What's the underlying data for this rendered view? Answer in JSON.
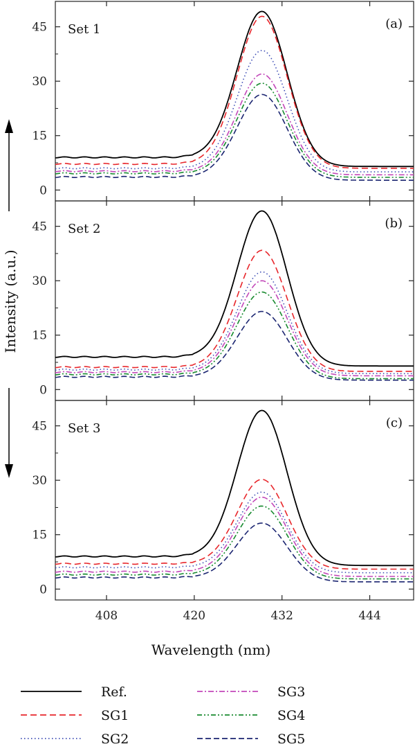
{
  "chart_data": {
    "type": "line",
    "xlabel": "Wavelength (nm)",
    "ylabel": "Intensity (a.u.)",
    "xlim": [
      401,
      450
    ],
    "ylim": [
      -3,
      52
    ],
    "xticks": [
      408,
      420,
      432,
      444
    ],
    "yticks": [
      0,
      15,
      30,
      45
    ],
    "legend_position": "bottom",
    "series_styles": [
      {
        "name": "Ref.",
        "color": "#000000",
        "dash": ""
      },
      {
        "name": "SG1",
        "color": "#e8262b",
        "dash": "9,5"
      },
      {
        "name": "SG2",
        "color": "#3d4db5",
        "dash": "1.5,3.5"
      },
      {
        "name": "SG3",
        "color": "#c248b9",
        "dash": "8,3,2,3"
      },
      {
        "name": "SG4",
        "color": "#178a2e",
        "dash": "7,3,2,3,2,3"
      },
      {
        "name": "SG5",
        "color": "#1a2470",
        "dash": "8,4"
      }
    ],
    "panels": [
      {
        "title": "Set 1",
        "letter": "(a)",
        "series": [
          {
            "name": "Ref.",
            "baseline_left": 9.0,
            "peak": 50.5,
            "baseline_right": 6.5
          },
          {
            "name": "SG1",
            "baseline_left": 7.2,
            "peak": 48.5,
            "baseline_right": 6.0
          },
          {
            "name": "SG2",
            "baseline_left": 6.0,
            "peak": 39.0,
            "baseline_right": 5.0
          },
          {
            "name": "SG3",
            "baseline_left": 5.2,
            "peak": 32.5,
            "baseline_right": 4.2
          },
          {
            "name": "SG4",
            "baseline_left": 4.6,
            "peak": 30.0,
            "baseline_right": 3.5
          },
          {
            "name": "SG5",
            "baseline_left": 3.6,
            "peak": 26.8,
            "baseline_right": 2.7
          }
        ]
      },
      {
        "title": "Set 2",
        "letter": "(b)",
        "series": [
          {
            "name": "Ref.",
            "baseline_left": 9.0,
            "peak": 50.5,
            "baseline_right": 6.5
          },
          {
            "name": "SG1",
            "baseline_left": 6.2,
            "peak": 39.0,
            "baseline_right": 5.0
          },
          {
            "name": "SG2",
            "baseline_left": 5.5,
            "peak": 33.0,
            "baseline_right": 4.4
          },
          {
            "name": "SG3",
            "baseline_left": 4.8,
            "peak": 30.5,
            "baseline_right": 3.8
          },
          {
            "name": "SG4",
            "baseline_left": 4.2,
            "peak": 27.5,
            "baseline_right": 3.0
          },
          {
            "name": "SG5",
            "baseline_left": 3.5,
            "peak": 22.0,
            "baseline_right": 2.6
          }
        ]
      },
      {
        "title": "Set 3",
        "letter": "(c)",
        "series": [
          {
            "name": "Ref.",
            "baseline_left": 9.0,
            "peak": 50.5,
            "baseline_right": 6.5
          },
          {
            "name": "SG1",
            "baseline_left": 7.0,
            "peak": 31.0,
            "baseline_right": 5.5
          },
          {
            "name": "SG2",
            "baseline_left": 6.0,
            "peak": 27.5,
            "baseline_right": 4.5
          },
          {
            "name": "SG3",
            "baseline_left": 4.8,
            "peak": 26.0,
            "baseline_right": 3.5
          },
          {
            "name": "SG4",
            "baseline_left": 4.0,
            "peak": 23.5,
            "baseline_right": 2.8
          },
          {
            "name": "SG5",
            "baseline_left": 3.2,
            "peak": 18.8,
            "baseline_right": 2.0
          }
        ]
      }
    ]
  }
}
